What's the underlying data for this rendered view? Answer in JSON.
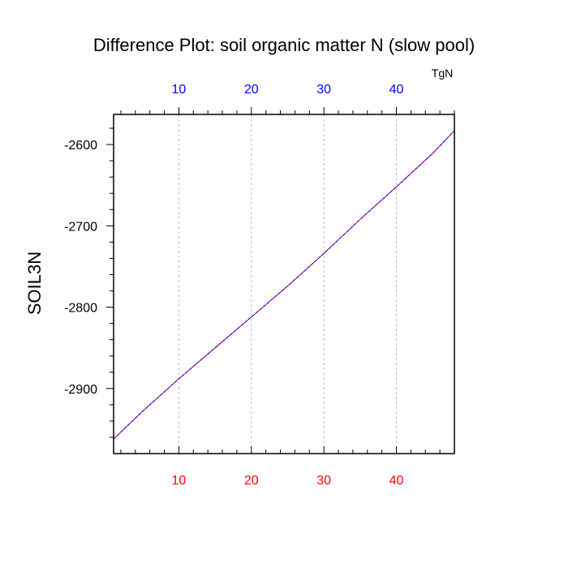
{
  "chart_data": {
    "type": "line",
    "title": "Difference Plot: soil organic matter N (slow pool)",
    "ylabel": "SOIL3N",
    "top_axis_unit": "TgN",
    "xlim": [
      1,
      48
    ],
    "ylim": [
      -2980,
      -2563
    ],
    "x_ticks": [
      10,
      20,
      30,
      40
    ],
    "x_tick_labels": [
      "10",
      "20",
      "30",
      "40"
    ],
    "y_ticks": [
      -2900,
      -2800,
      -2700,
      -2600
    ],
    "y_tick_labels": [
      "-2900",
      "-2800",
      "-2700",
      "-2600"
    ],
    "grid": "vertical dashed at major x ticks",
    "colors": {
      "bottom_tick_labels": "#ff0000",
      "top_tick_labels": "#0000ff",
      "series_solid": "#ff0000",
      "series_dashed": "#0000ff",
      "grid": "#bbbbbb"
    },
    "series": [
      {
        "style": "solid",
        "x": [
          1,
          5,
          10,
          15,
          20,
          25,
          30,
          35,
          40,
          45,
          48
        ],
        "y": [
          -2962,
          -2928,
          -2888,
          -2850,
          -2812,
          -2774,
          -2734,
          -2692,
          -2652,
          -2611,
          -2583
        ]
      },
      {
        "style": "dashed",
        "x": [
          1,
          5,
          10,
          15,
          20,
          25,
          30,
          35,
          40,
          45,
          48
        ],
        "y": [
          -2962,
          -2928,
          -2888,
          -2850,
          -2812,
          -2774,
          -2734,
          -2692,
          -2652,
          -2611,
          -2583
        ]
      }
    ]
  }
}
